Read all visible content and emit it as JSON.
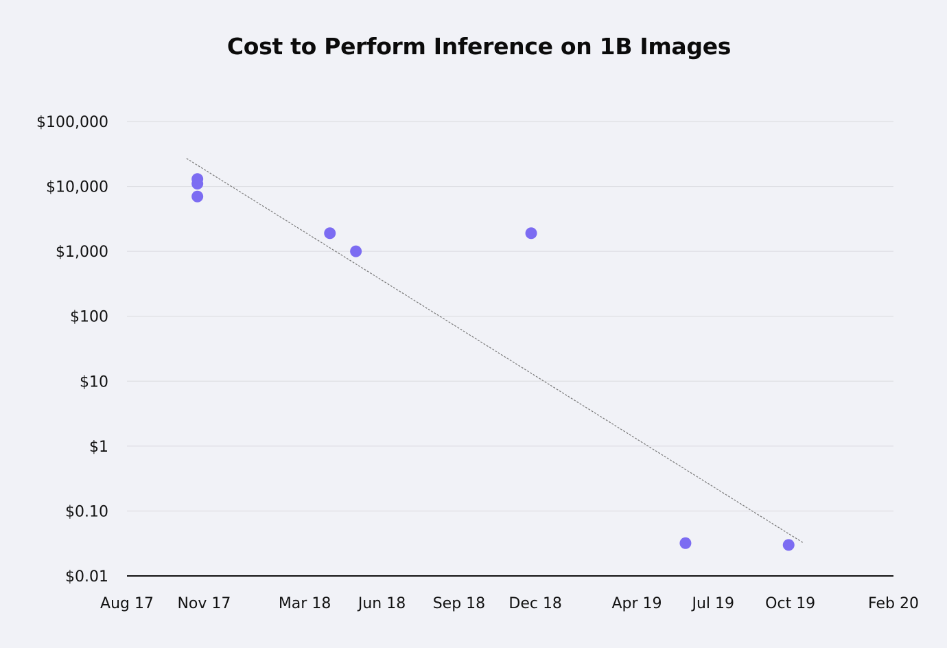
{
  "chart_data": {
    "type": "scatter",
    "title": "Cost to Perform Inference on 1B Images",
    "xlabel": "",
    "ylabel": "",
    "y_scale": "log",
    "ylim": [
      0.01,
      100000
    ],
    "y_ticks": [
      {
        "value": 100000,
        "label": "$100,000"
      },
      {
        "value": 10000,
        "label": "$10,000"
      },
      {
        "value": 1000,
        "label": "$1,000"
      },
      {
        "value": 100,
        "label": "$100"
      },
      {
        "value": 10,
        "label": "$10"
      },
      {
        "value": 1,
        "label": "$1"
      },
      {
        "value": 0.1,
        "label": "$0.10"
      },
      {
        "value": 0.01,
        "label": "$0.01"
      }
    ],
    "xlim": [
      "2017-08-01",
      "2020-02-01"
    ],
    "x_ticks": [
      {
        "value": "2017-08-01",
        "label": "Aug 17"
      },
      {
        "value": "2017-11-01",
        "label": "Nov 17"
      },
      {
        "value": "2018-03-01",
        "label": "Mar 18"
      },
      {
        "value": "2018-06-01",
        "label": "Jun 18"
      },
      {
        "value": "2018-09-01",
        "label": "Sep 18"
      },
      {
        "value": "2018-12-01",
        "label": "Dec 18"
      },
      {
        "value": "2019-04-01",
        "label": "Apr 19"
      },
      {
        "value": "2019-07-01",
        "label": "Jul 19"
      },
      {
        "value": "2019-10-01",
        "label": "Oct 19"
      },
      {
        "value": "2020-02-01",
        "label": "Feb 20"
      }
    ],
    "grid": true,
    "points": [
      {
        "x": "2017-10-24",
        "y": 13000
      },
      {
        "x": "2017-10-24",
        "y": 11000
      },
      {
        "x": "2017-10-24",
        "y": 7000
      },
      {
        "x": "2018-03-31",
        "y": 1900
      },
      {
        "x": "2018-05-01",
        "y": 1000
      },
      {
        "x": "2018-11-26",
        "y": 1900
      },
      {
        "x": "2019-05-29",
        "y": 0.032
      },
      {
        "x": "2019-09-29",
        "y": 0.03
      }
    ],
    "trendline": [
      {
        "x": "2017-10-11",
        "y": 27000
      },
      {
        "x": "2019-10-17",
        "y": 0.032
      }
    ],
    "colors": {
      "point": "#7c6cf2",
      "trendline": "#777777",
      "grid": "#d9d9de",
      "axis": "#111111",
      "background": "#f1f2f7"
    }
  }
}
